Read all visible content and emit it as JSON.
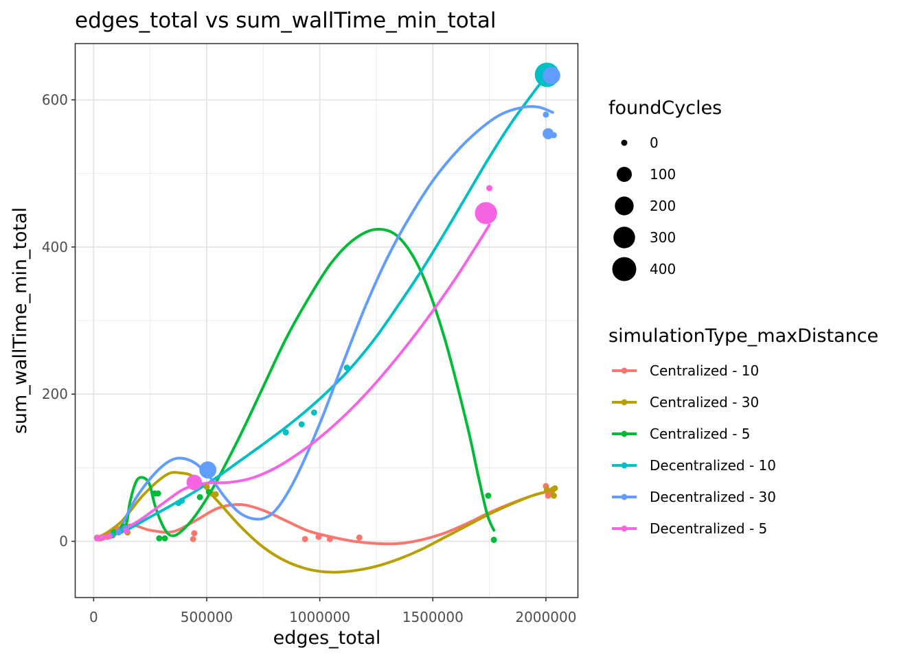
{
  "chart_data": {
    "type": "scatter",
    "title": "edges_total  vs  sum_wallTime_min_total",
    "xlabel": "edges_total",
    "ylabel": "sum_wallTime_min_total",
    "xlim": [
      -80000,
      2140000
    ],
    "ylim": [
      -76,
      676
    ],
    "x_ticks": [
      0,
      500000,
      1000000,
      1500000,
      2000000
    ],
    "x_tick_labels": [
      "0",
      "500000",
      "1000000",
      "1500000",
      "2000000"
    ],
    "y_ticks": [
      0,
      200,
      400,
      600
    ],
    "y_tick_labels": [
      "0",
      "200",
      "400",
      "600"
    ],
    "grid": true,
    "size_legend": {
      "title": "foundCycles",
      "entries": [
        {
          "label": "0",
          "value": 0
        },
        {
          "label": "100",
          "value": 100
        },
        {
          "label": "200",
          "value": 200
        },
        {
          "label": "300",
          "value": 300
        },
        {
          "label": "400",
          "value": 400
        }
      ]
    },
    "color_legend": {
      "title": "simulationType_maxDistance",
      "placement": "right"
    },
    "series": [
      {
        "name": "Centralized - 10",
        "color": "#F8766D",
        "points": [
          [
            15000,
            5,
            0
          ],
          [
            30000,
            4,
            0
          ],
          [
            60000,
            6,
            0
          ],
          [
            85000,
            8,
            0
          ],
          [
            440000,
            3,
            0
          ],
          [
            445000,
            11,
            0
          ],
          [
            935000,
            3,
            0
          ],
          [
            995000,
            6,
            0
          ],
          [
            1045000,
            3,
            0
          ],
          [
            1175000,
            5,
            0
          ],
          [
            2000000,
            75,
            0
          ],
          [
            2005000,
            68,
            0
          ],
          [
            2010000,
            62,
            0
          ],
          [
            2025000,
            66,
            0
          ]
        ],
        "curve": [
          [
            15000,
            5
          ],
          [
            150000,
            22
          ],
          [
            250000,
            15
          ],
          [
            350000,
            13
          ],
          [
            450000,
            28
          ],
          [
            550000,
            45
          ],
          [
            650000,
            50
          ],
          [
            750000,
            42
          ],
          [
            850000,
            28
          ],
          [
            950000,
            14
          ],
          [
            1050000,
            6
          ],
          [
            1150000,
            0
          ],
          [
            1250000,
            -3
          ],
          [
            1350000,
            -3
          ],
          [
            1450000,
            2
          ],
          [
            1550000,
            11
          ],
          [
            1650000,
            24
          ],
          [
            1750000,
            39
          ],
          [
            1850000,
            52
          ],
          [
            1950000,
            63
          ],
          [
            2030000,
            69
          ]
        ]
      },
      {
        "name": "Centralized - 30",
        "color": "#B79F00",
        "points": [
          [
            20000,
            4,
            0
          ],
          [
            40000,
            5,
            0
          ],
          [
            70000,
            7,
            0
          ],
          [
            150000,
            12,
            0
          ],
          [
            500000,
            74,
            0
          ],
          [
            520000,
            65,
            0
          ],
          [
            540000,
            64,
            0
          ],
          [
            2005000,
            70,
            0
          ],
          [
            2030000,
            70,
            0
          ],
          [
            2040000,
            72,
            0
          ],
          [
            2035000,
            62,
            0
          ]
        ],
        "curve": [
          [
            20000,
            4
          ],
          [
            120000,
            26
          ],
          [
            220000,
            63
          ],
          [
            320000,
            90
          ],
          [
            380000,
            93
          ],
          [
            450000,
            86
          ],
          [
            550000,
            54
          ],
          [
            650000,
            20
          ],
          [
            750000,
            -8
          ],
          [
            850000,
            -27
          ],
          [
            950000,
            -38
          ],
          [
            1050000,
            -42
          ],
          [
            1150000,
            -40
          ],
          [
            1250000,
            -34
          ],
          [
            1350000,
            -24
          ],
          [
            1450000,
            -11
          ],
          [
            1550000,
            5
          ],
          [
            1650000,
            21
          ],
          [
            1750000,
            37
          ],
          [
            1850000,
            51
          ],
          [
            1950000,
            63
          ],
          [
            2040000,
            70
          ]
        ]
      },
      {
        "name": "Centralized - 5",
        "color": "#00BA38",
        "points": [
          [
            90000,
            12,
            0
          ],
          [
            130000,
            20,
            0
          ],
          [
            270000,
            65,
            0
          ],
          [
            285000,
            65,
            0
          ],
          [
            290000,
            4,
            0
          ],
          [
            315000,
            4,
            0
          ],
          [
            470000,
            60,
            0
          ],
          [
            510000,
            67,
            0
          ],
          [
            1745000,
            62,
            0
          ],
          [
            1770000,
            2,
            0
          ]
        ],
        "curve": [
          [
            90000,
            12
          ],
          [
            140000,
            20
          ],
          [
            160000,
            52
          ],
          [
            180000,
            75
          ],
          [
            200000,
            86
          ],
          [
            230000,
            85
          ],
          [
            250000,
            75
          ],
          [
            270000,
            50
          ],
          [
            300000,
            25
          ],
          [
            330000,
            10
          ],
          [
            360000,
            8
          ],
          [
            400000,
            17
          ],
          [
            450000,
            35
          ],
          [
            500000,
            58
          ],
          [
            550000,
            85
          ],
          [
            650000,
            145
          ],
          [
            750000,
            210
          ],
          [
            850000,
            275
          ],
          [
            950000,
            330
          ],
          [
            1050000,
            378
          ],
          [
            1150000,
            410
          ],
          [
            1250000,
            424
          ],
          [
            1350000,
            413
          ],
          [
            1450000,
            365
          ],
          [
            1550000,
            278
          ],
          [
            1650000,
            160
          ],
          [
            1700000,
            90
          ],
          [
            1740000,
            37
          ],
          [
            1770000,
            15
          ]
        ]
      },
      {
        "name": "Decentralized - 10",
        "color": "#00BFC4",
        "points": [
          [
            80000,
            8,
            0
          ],
          [
            120000,
            14,
            0
          ],
          [
            375000,
            52,
            0
          ],
          [
            390000,
            55,
            0
          ],
          [
            850000,
            148,
            0
          ],
          [
            920000,
            159,
            0
          ],
          [
            975000,
            175,
            0
          ],
          [
            1120000,
            236,
            0
          ],
          [
            2005000,
            634,
            420
          ]
        ],
        "curve": [
          [
            80000,
            8
          ],
          [
            150000,
            16
          ],
          [
            250000,
            33
          ],
          [
            350000,
            50
          ],
          [
            450000,
            68
          ],
          [
            550000,
            88
          ],
          [
            650000,
            110
          ],
          [
            750000,
            132
          ],
          [
            850000,
            155
          ],
          [
            950000,
            180
          ],
          [
            1050000,
            208
          ],
          [
            1150000,
            240
          ],
          [
            1250000,
            278
          ],
          [
            1350000,
            322
          ],
          [
            1450000,
            368
          ],
          [
            1550000,
            418
          ],
          [
            1650000,
            470
          ],
          [
            1750000,
            522
          ],
          [
            1850000,
            570
          ],
          [
            1950000,
            612
          ],
          [
            2005000,
            634
          ]
        ]
      },
      {
        "name": "Decentralized - 30",
        "color": "#619CFF",
        "points": [
          [
            110000,
            12,
            0
          ],
          [
            140000,
            18,
            0
          ],
          [
            505000,
            97,
            150
          ],
          [
            2000000,
            580,
            0
          ],
          [
            2010000,
            554,
            30
          ],
          [
            2015000,
            553,
            0
          ],
          [
            2035000,
            552,
            0
          ],
          [
            2025000,
            633,
            160
          ],
          [
            2040000,
            634,
            0
          ]
        ],
        "curve": [
          [
            110000,
            12
          ],
          [
            180000,
            55
          ],
          [
            250000,
            85
          ],
          [
            320000,
            106
          ],
          [
            380000,
            113
          ],
          [
            450000,
            106
          ],
          [
            520000,
            85
          ],
          [
            580000,
            60
          ],
          [
            640000,
            40
          ],
          [
            700000,
            31
          ],
          [
            760000,
            32
          ],
          [
            820000,
            48
          ],
          [
            900000,
            90
          ],
          [
            1000000,
            160
          ],
          [
            1100000,
            240
          ],
          [
            1200000,
            318
          ],
          [
            1300000,
            386
          ],
          [
            1400000,
            442
          ],
          [
            1500000,
            490
          ],
          [
            1600000,
            528
          ],
          [
            1700000,
            558
          ],
          [
            1800000,
            580
          ],
          [
            1900000,
            590
          ],
          [
            1970000,
            590
          ],
          [
            2030000,
            583
          ]
        ]
      },
      {
        "name": "Decentralized - 5",
        "color": "#F564E3",
        "points": [
          [
            15000,
            4,
            0
          ],
          [
            40000,
            5,
            0
          ],
          [
            70000,
            7,
            0
          ],
          [
            145000,
            14,
            0
          ],
          [
            445000,
            80,
            110
          ],
          [
            1735000,
            446,
            320
          ],
          [
            1750000,
            480,
            0
          ]
        ],
        "curve": [
          [
            15000,
            4
          ],
          [
            100000,
            12
          ],
          [
            200000,
            28
          ],
          [
            300000,
            50
          ],
          [
            400000,
            71
          ],
          [
            500000,
            79
          ],
          [
            600000,
            80
          ],
          [
            700000,
            86
          ],
          [
            800000,
            99
          ],
          [
            900000,
            118
          ],
          [
            1000000,
            141
          ],
          [
            1100000,
            168
          ],
          [
            1200000,
            199
          ],
          [
            1300000,
            234
          ],
          [
            1400000,
            272
          ],
          [
            1500000,
            313
          ],
          [
            1600000,
            357
          ],
          [
            1700000,
            405
          ],
          [
            1750000,
            430
          ]
        ]
      }
    ]
  }
}
